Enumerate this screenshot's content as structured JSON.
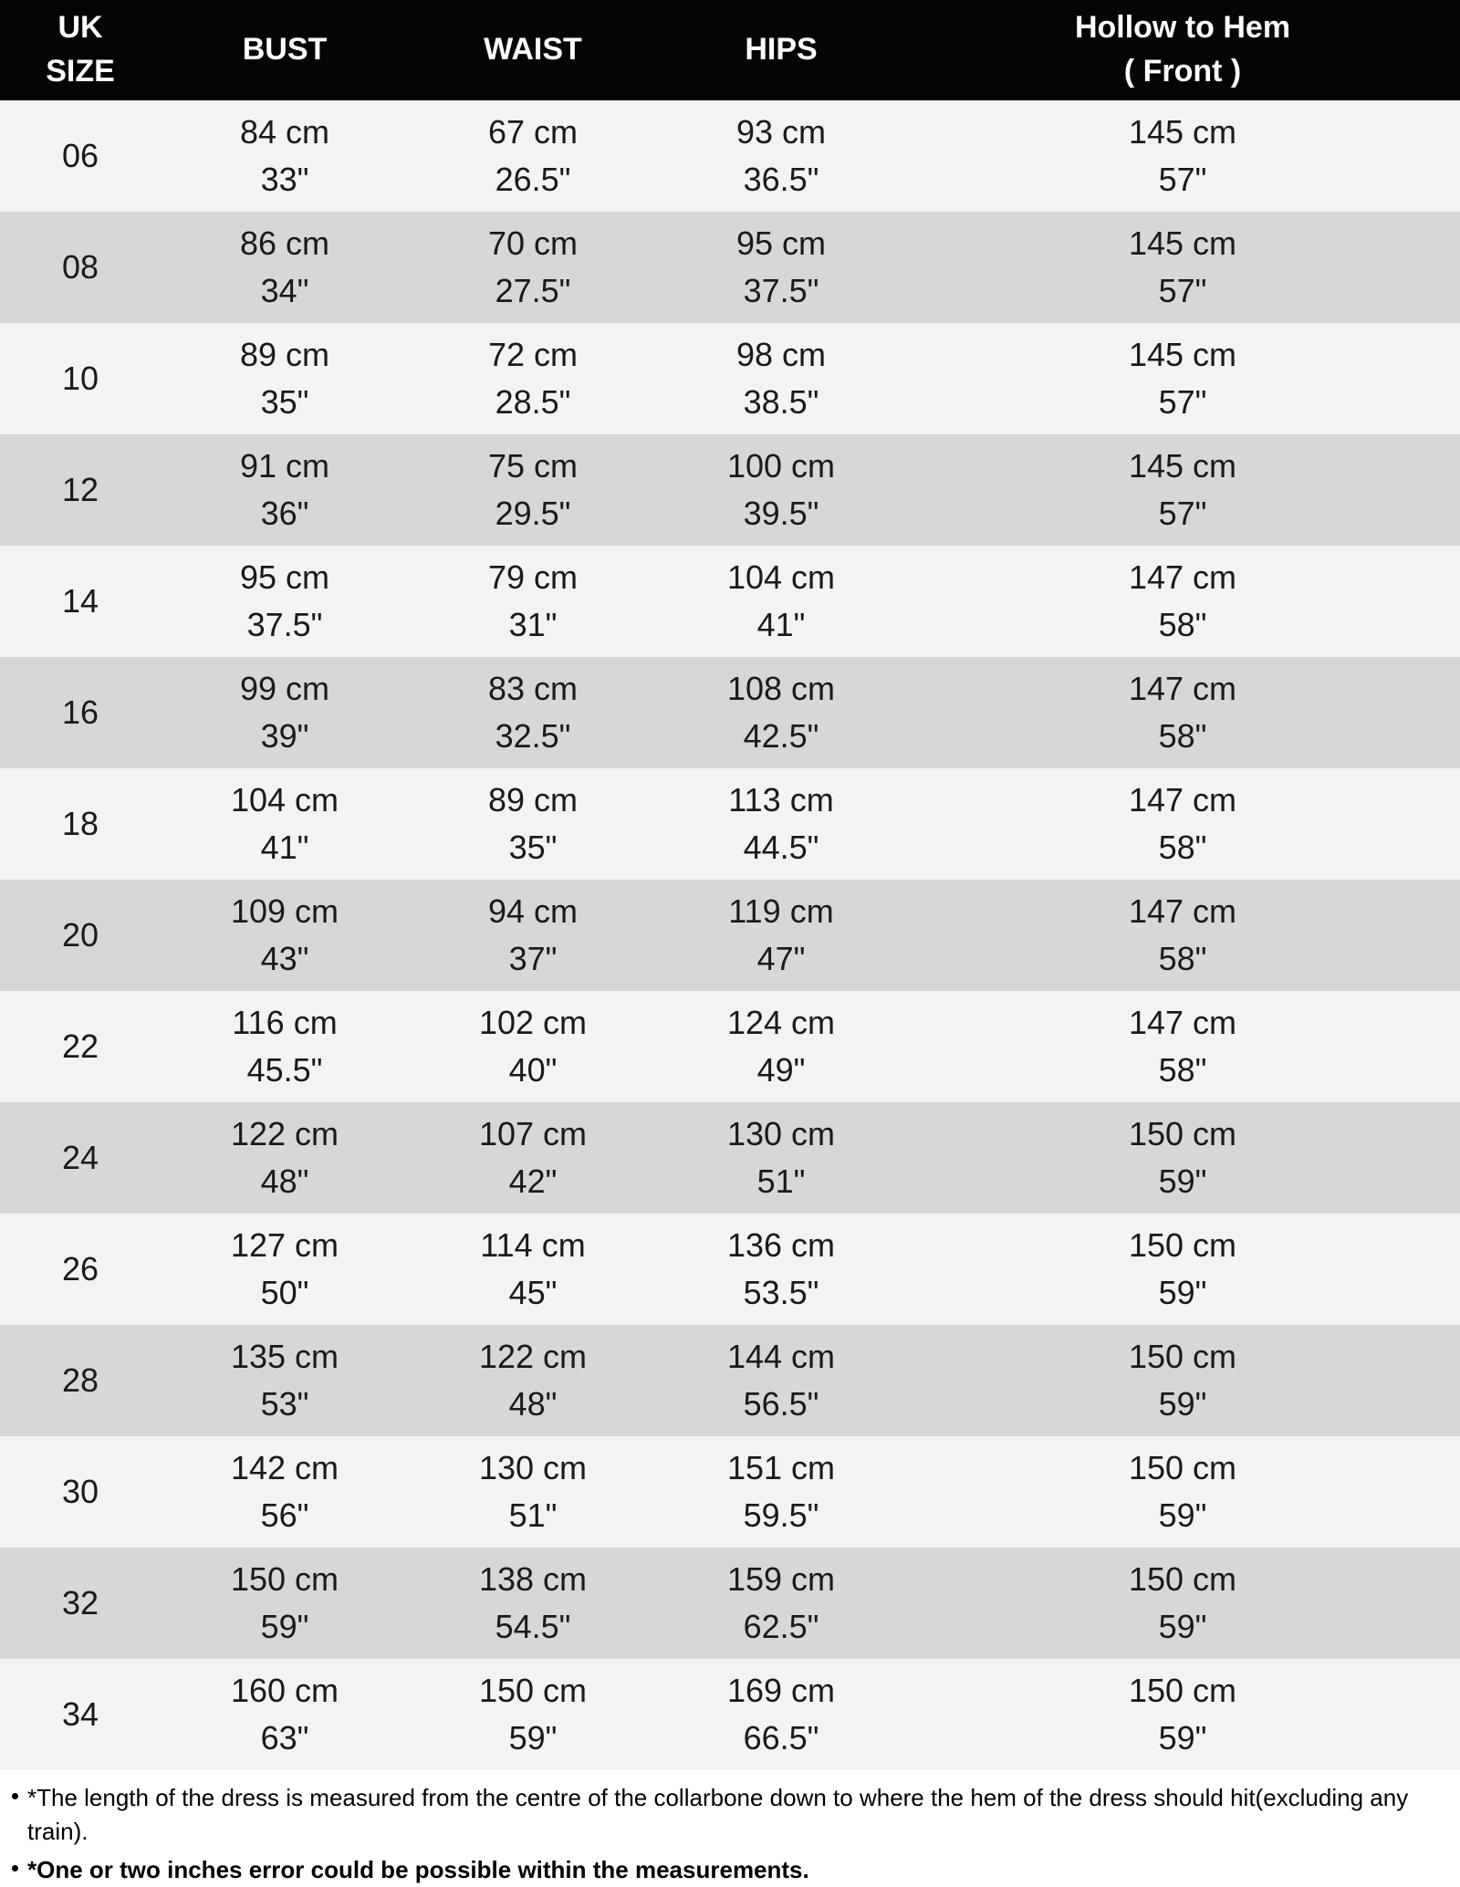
{
  "chart_data": {
    "type": "table",
    "title": "Dress size chart (UK sizes) with bust, waist, hips and hollow-to-hem measurements",
    "columns": [
      "UK SIZE",
      "BUST",
      "WAIST",
      "HIPS",
      "Hollow to Hem ( Front )"
    ],
    "rows": [
      [
        "06",
        "84 cm / 33\"",
        "67 cm / 26.5\"",
        "93 cm / 36.5\"",
        "145 cm / 57\""
      ],
      [
        "08",
        "86 cm / 34\"",
        "70 cm / 27.5\"",
        "95 cm / 37.5\"",
        "145 cm / 57\""
      ],
      [
        "10",
        "89 cm / 35\"",
        "72 cm / 28.5\"",
        "98 cm / 38.5\"",
        "145 cm / 57\""
      ],
      [
        "12",
        "91 cm / 36\"",
        "75 cm / 29.5\"",
        "100 cm / 39.5\"",
        "145 cm / 57\""
      ],
      [
        "14",
        "95 cm / 37.5\"",
        "79 cm / 31\"",
        "104 cm / 41\"",
        "147 cm / 58\""
      ],
      [
        "16",
        "99 cm / 39\"",
        "83 cm / 32.5\"",
        "108 cm / 42.5\"",
        "147 cm / 58\""
      ],
      [
        "18",
        "104 cm / 41\"",
        "89 cm / 35\"",
        "113 cm / 44.5\"",
        "147 cm / 58\""
      ],
      [
        "20",
        "109 cm / 43\"",
        "94 cm / 37\"",
        "119 cm / 47\"",
        "147 cm / 58\""
      ],
      [
        "22",
        "116 cm / 45.5\"",
        "102 cm / 40\"",
        "124 cm / 49\"",
        "147 cm / 58\""
      ],
      [
        "24",
        "122 cm / 48\"",
        "107 cm / 42\"",
        "130 cm / 51\"",
        "150 cm / 59\""
      ],
      [
        "26",
        "127 cm / 50\"",
        "114 cm / 45\"",
        "136 cm / 53.5\"",
        "150 cm / 59\""
      ],
      [
        "28",
        "135 cm / 53\"",
        "122 cm / 48\"",
        "144 cm / 56.5\"",
        "150 cm / 59\""
      ],
      [
        "30",
        "142 cm / 56\"",
        "130 cm / 51\"",
        "151 cm / 59.5\"",
        "150 cm / 59\""
      ],
      [
        "32",
        "150 cm / 59\"",
        "138 cm / 54.5\"",
        "159 cm / 62.5\"",
        "150 cm / 59\""
      ],
      [
        "34",
        "160 cm / 63\"",
        "150 cm / 59\"",
        "169 cm / 66.5\"",
        "150 cm / 59\""
      ]
    ]
  },
  "header": {
    "uk_line1": "UK",
    "uk_line2": "SIZE",
    "bust": "BUST",
    "waist": "WAIST",
    "hips": "HIPS",
    "hollow_line1": "Hollow to Hem",
    "hollow_line2": "( Front )"
  },
  "table": {
    "rows": [
      {
        "size": "06",
        "bust": [
          "84 cm",
          "33\""
        ],
        "waist": [
          "67 cm",
          "26.5\""
        ],
        "hips": [
          "93 cm",
          "36.5\""
        ],
        "hollow": [
          "145 cm",
          "57\""
        ]
      },
      {
        "size": "08",
        "bust": [
          "86 cm",
          "34\""
        ],
        "waist": [
          "70 cm",
          "27.5\""
        ],
        "hips": [
          "95 cm",
          "37.5\""
        ],
        "hollow": [
          "145 cm",
          "57\""
        ]
      },
      {
        "size": "10",
        "bust": [
          "89 cm",
          "35\""
        ],
        "waist": [
          "72 cm",
          "28.5\""
        ],
        "hips": [
          "98 cm",
          "38.5\""
        ],
        "hollow": [
          "145 cm",
          "57\""
        ]
      },
      {
        "size": "12",
        "bust": [
          "91 cm",
          "36\""
        ],
        "waist": [
          "75 cm",
          "29.5\""
        ],
        "hips": [
          "100 cm",
          "39.5\""
        ],
        "hollow": [
          "145 cm",
          "57\""
        ]
      },
      {
        "size": "14",
        "bust": [
          "95 cm",
          "37.5\""
        ],
        "waist": [
          "79 cm",
          "31\""
        ],
        "hips": [
          "104 cm",
          "41\""
        ],
        "hollow": [
          "147 cm",
          "58\""
        ]
      },
      {
        "size": "16",
        "bust": [
          "99 cm",
          "39\""
        ],
        "waist": [
          "83 cm",
          "32.5\""
        ],
        "hips": [
          "108 cm",
          "42.5\""
        ],
        "hollow": [
          "147 cm",
          "58\""
        ]
      },
      {
        "size": "18",
        "bust": [
          "104 cm",
          "41\""
        ],
        "waist": [
          "89 cm",
          "35\""
        ],
        "hips": [
          "113 cm",
          "44.5\""
        ],
        "hollow": [
          "147 cm",
          "58\""
        ]
      },
      {
        "size": "20",
        "bust": [
          "109 cm",
          "43\""
        ],
        "waist": [
          "94 cm",
          "37\""
        ],
        "hips": [
          "119 cm",
          "47\""
        ],
        "hollow": [
          "147 cm",
          "58\""
        ]
      },
      {
        "size": "22",
        "bust": [
          "116 cm",
          "45.5\""
        ],
        "waist": [
          "102 cm",
          "40\""
        ],
        "hips": [
          "124 cm",
          "49\""
        ],
        "hollow": [
          "147 cm",
          "58\""
        ]
      },
      {
        "size": "24",
        "bust": [
          "122 cm",
          "48\""
        ],
        "waist": [
          "107 cm",
          "42\""
        ],
        "hips": [
          "130 cm",
          "51\""
        ],
        "hollow": [
          "150 cm",
          "59\""
        ]
      },
      {
        "size": "26",
        "bust": [
          "127 cm",
          "50\""
        ],
        "waist": [
          "114 cm",
          "45\""
        ],
        "hips": [
          "136 cm",
          "53.5\""
        ],
        "hollow": [
          "150 cm",
          "59\""
        ]
      },
      {
        "size": "28",
        "bust": [
          "135 cm",
          "53\""
        ],
        "waist": [
          "122 cm",
          "48\""
        ],
        "hips": [
          "144 cm",
          "56.5\""
        ],
        "hollow": [
          "150 cm",
          "59\""
        ]
      },
      {
        "size": "30",
        "bust": [
          "142 cm",
          "56\""
        ],
        "waist": [
          "130 cm",
          "51\""
        ],
        "hips": [
          "151 cm",
          "59.5\""
        ],
        "hollow": [
          "150 cm",
          "59\""
        ]
      },
      {
        "size": "32",
        "bust": [
          "150 cm",
          "59\""
        ],
        "waist": [
          "138 cm",
          "54.5\""
        ],
        "hips": [
          "159 cm",
          "62.5\""
        ],
        "hollow": [
          "150 cm",
          "59\""
        ]
      },
      {
        "size": "34",
        "bust": [
          "160 cm",
          "63\""
        ],
        "waist": [
          "150 cm",
          "59\""
        ],
        "hips": [
          "169 cm",
          "66.5\""
        ],
        "hollow": [
          "150 cm",
          "59\""
        ]
      }
    ]
  },
  "footnotes": [
    {
      "text": "*The length of the dress is measured from the centre of the collarbone down to where the hem of the dress should hit(excluding any train).",
      "bold": false
    },
    {
      "text": "*One or two inches error could be possible within the measurements.",
      "bold": true
    }
  ],
  "colors": {
    "header_bg": "#060404",
    "header_text": "#ffffff",
    "row_light": "#f4f3f1",
    "row_dark": "#d8d7d5",
    "text": "#1c1a18",
    "note_text": "#000000"
  }
}
